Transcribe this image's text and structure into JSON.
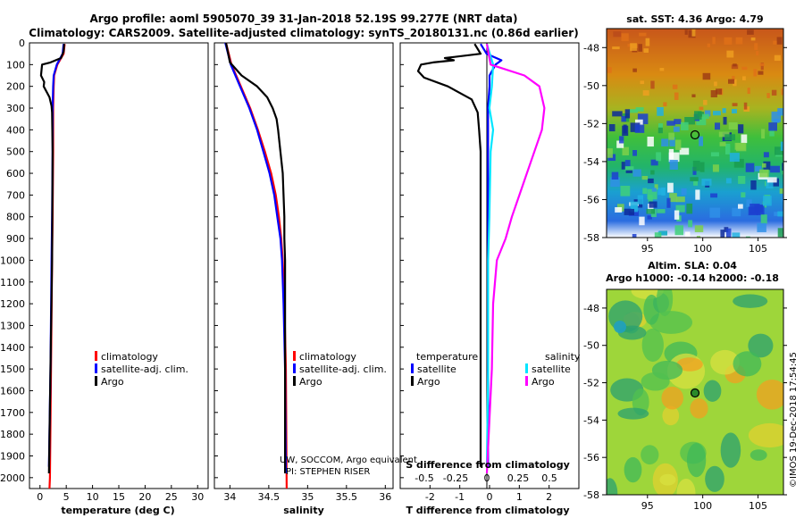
{
  "header": {
    "line1": "Argo profile: aoml 5905070_39 31-Jan-2018 52.19S 99.277E (NRT data)",
    "line2": "Climatology: CARS2009. Satellite-adjusted climatology: synTS_20180131.nc (0.86d earlier)"
  },
  "colors": {
    "climatology": "#ff0000",
    "satellite": "#0000ff",
    "argo": "#000000",
    "sat_s": "#00e5ff",
    "argo_s": "#ff00ff"
  },
  "depth_axis": {
    "min": 0,
    "max": 2050,
    "ticks": [
      "0",
      "100",
      "200",
      "300",
      "400",
      "500",
      "600",
      "700",
      "800",
      "900",
      "1000",
      "1100",
      "1200",
      "1300",
      "1400",
      "1500",
      "1600",
      "1700",
      "1800",
      "1900",
      "2000"
    ]
  },
  "chart_data": [
    {
      "type": "line",
      "name": "temperature",
      "xlabel": "temperature (deg C)",
      "xlim": [
        -2,
        32
      ],
      "xticks": [
        "0",
        "5",
        "10",
        "15",
        "20",
        "25",
        "30"
      ],
      "legend": [
        "climatology",
        "satellite-adj. clim.",
        "Argo"
      ],
      "series": [
        {
          "name": "climatology",
          "depth": [
            5,
            50,
            100,
            150,
            200,
            300,
            500,
            800,
            1000,
            1500,
            2000,
            2050
          ],
          "values": [
            4.7,
            4.5,
            3.3,
            2.7,
            2.6,
            2.5,
            2.5,
            2.4,
            2.3,
            2.1,
            1.9,
            1.8
          ]
        },
        {
          "name": "satellite-adj. clim.",
          "depth": [
            5,
            50,
            100,
            150,
            200,
            300,
            500,
            800,
            1000,
            1500,
            1950
          ],
          "values": [
            4.5,
            4.3,
            3.2,
            2.6,
            2.5,
            2.4,
            2.4,
            2.3,
            2.2,
            2.0,
            1.7
          ]
        },
        {
          "name": "Argo",
          "depth": [
            5,
            40,
            70,
            90,
            100,
            150,
            180,
            200,
            250,
            290,
            320,
            500,
            1000,
            1500,
            1980
          ],
          "values": [
            4.6,
            4.5,
            4.0,
            2.0,
            0.4,
            0.2,
            0.8,
            0.7,
            1.8,
            2.2,
            2.3,
            2.4,
            2.3,
            2.0,
            1.7
          ]
        }
      ]
    },
    {
      "type": "line",
      "name": "salinity",
      "xlabel": "salinity",
      "xlim": [
        33.8,
        36.1
      ],
      "xticks": [
        "34",
        "34.5",
        "35",
        "35.5",
        "36"
      ],
      "legend": [
        "climatology",
        "satellite-adj. clim.",
        "Argo"
      ],
      "series": [
        {
          "name": "climatology",
          "depth": [
            0,
            100,
            200,
            300,
            400,
            500,
            600,
            700,
            800,
            900,
            1000,
            1200,
            1500,
            2050
          ],
          "values": [
            33.95,
            34.02,
            34.14,
            34.26,
            34.36,
            34.45,
            34.53,
            34.59,
            34.63,
            34.66,
            34.68,
            34.7,
            34.72,
            34.73
          ]
        },
        {
          "name": "satellite-adj. clim.",
          "depth": [
            0,
            100,
            200,
            300,
            400,
            500,
            600,
            700,
            800,
            900,
            1000,
            1200,
            1500,
            1980
          ],
          "values": [
            33.94,
            34.01,
            34.13,
            34.25,
            34.35,
            34.43,
            34.51,
            34.57,
            34.61,
            34.65,
            34.67,
            34.69,
            34.71,
            34.72
          ]
        },
        {
          "name": "Argo",
          "depth": [
            0,
            90,
            150,
            200,
            250,
            300,
            350,
            400,
            500,
            600,
            700,
            800,
            900,
            1000,
            1200,
            1500,
            1980
          ],
          "values": [
            33.95,
            34.0,
            34.15,
            34.35,
            34.48,
            34.55,
            34.6,
            34.62,
            34.65,
            34.68,
            34.69,
            34.7,
            34.7,
            34.71,
            34.71,
            34.71,
            34.71
          ]
        }
      ]
    },
    {
      "type": "line",
      "name": "difference",
      "xlabel": "T difference from climatology",
      "xlabel_top": "S difference from climatology",
      "xlim": [
        -3,
        3
      ],
      "xticks": [
        "-2",
        "-1",
        "0",
        "1",
        "2"
      ],
      "xticks_top": [
        "-0.5",
        "-0.25",
        "0",
        "0.25",
        "0.5"
      ],
      "legend_left_title": "temperature",
      "legend_right_title": "salinity",
      "legend_left": [
        "satellite",
        "Argo"
      ],
      "legend_right": [
        "satellite",
        "Argo"
      ],
      "series": [
        {
          "name": "T satellite",
          "depth": [
            5,
            50,
            80,
            100,
            150,
            200,
            300,
            500,
            800,
            1000,
            1200,
            1500,
            1950
          ],
          "values": [
            -0.3,
            -0.1,
            0.4,
            0.2,
            0.0,
            0.0,
            -0.05,
            -0.05,
            -0.05,
            -0.05,
            -0.05,
            -0.05,
            -0.05
          ]
        },
        {
          "name": "T Argo",
          "depth": [
            5,
            50,
            70,
            80,
            90,
            100,
            130,
            160,
            200,
            260,
            320,
            400,
            500,
            700,
            1000,
            1500,
            1950
          ],
          "values": [
            -0.5,
            -0.3,
            -1.5,
            -1.2,
            -1.9,
            -2.3,
            -2.4,
            -2.2,
            -1.4,
            -0.6,
            -0.4,
            -0.35,
            -0.3,
            -0.3,
            -0.3,
            -0.3,
            -0.3
          ]
        },
        {
          "name": "S satellite",
          "depth": [
            5,
            100,
            200,
            300,
            400,
            500,
            800,
            1000,
            1500,
            1950
          ],
          "values": [
            0.0,
            0.05,
            0.04,
            0.02,
            0.05,
            0.03,
            0.02,
            0.01,
            0.01,
            0.0
          ]
        },
        {
          "name": "S Argo",
          "depth": [
            5,
            100,
            150,
            200,
            300,
            400,
            500,
            600,
            700,
            800,
            900,
            1000,
            1200,
            1500,
            1980
          ],
          "values": [
            0.0,
            0.03,
            0.3,
            0.42,
            0.46,
            0.44,
            0.38,
            0.32,
            0.26,
            0.2,
            0.15,
            0.08,
            0.05,
            0.04,
            0.0
          ]
        }
      ]
    }
  ],
  "sst_map": {
    "title": "sat. SST: 4.36 Argo: 4.79",
    "yticks": [
      "-48",
      "-50",
      "-52",
      "-54",
      "-56",
      "-58"
    ],
    "xticks": [
      "95",
      "100",
      "105"
    ]
  },
  "sla_map": {
    "title1": "Altim. SLA: 0.04",
    "title2": "Argo h1000: -0.14 h2000: -0.18",
    "yticks": [
      "-48",
      "-50",
      "-52",
      "-54",
      "-56",
      "-58"
    ],
    "xticks": [
      "95",
      "100",
      "105"
    ]
  },
  "credits": {
    "line1": "UW, SOCCOM, Argo equivalent",
    "line2": "PI: STEPHEN RISER"
  },
  "stamp": "©IMOS 19-Dec-2018 17:54:45"
}
